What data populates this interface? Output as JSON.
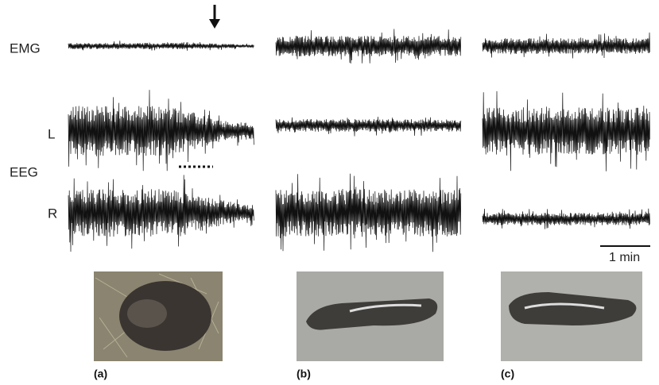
{
  "labels": {
    "emg": "EMG",
    "left": "L",
    "eeg": "EEG",
    "right": "R"
  },
  "scale_bar": "1 min",
  "panels": [
    "(a)",
    "(b)",
    "(c)"
  ]
}
